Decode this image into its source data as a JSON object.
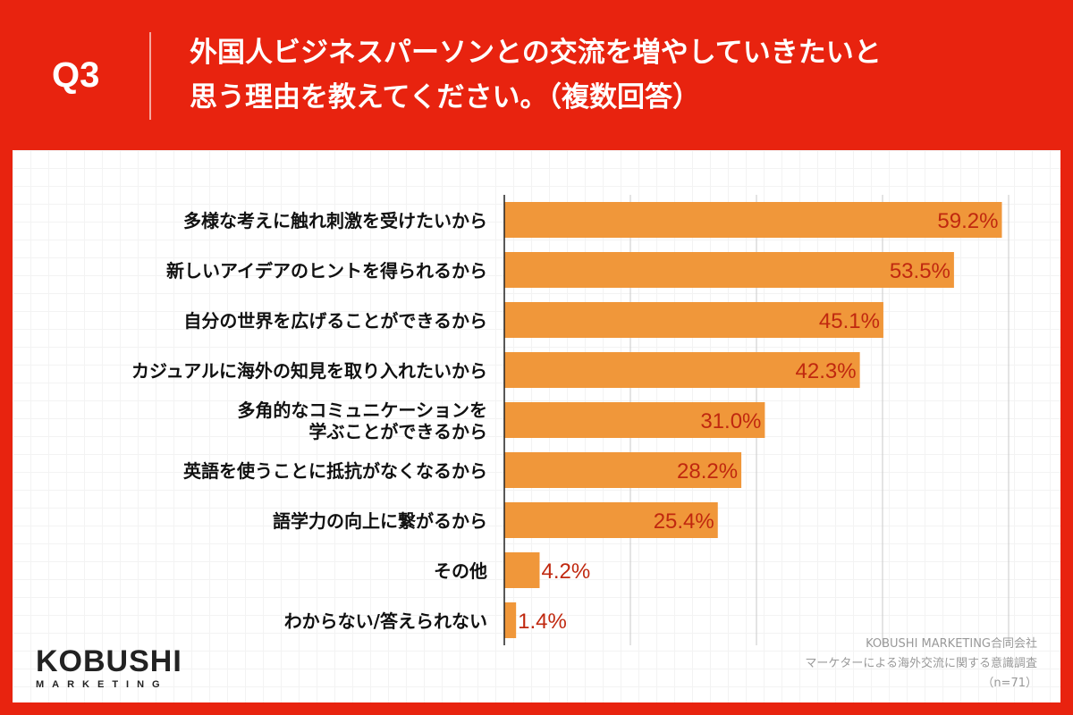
{
  "header": {
    "q_label": "Q3",
    "title_line1": "外国人ビジネスパーソンとの交流を増やしていきたいと",
    "title_line2": "思う理由を教えてください。（複数回答）"
  },
  "chart_data": {
    "type": "bar",
    "orientation": "horizontal",
    "categories": [
      "多様な考えに触れ刺激を受けたいから",
      "新しいアイデアのヒントを得られるから",
      "自分の世界を広げることができるから",
      "カジュアルに海外の知見を取り入れたいから",
      "多角的なコミュニケーションを\n学ぶことができるから",
      "英語を使うことに抵抗がなくなるから",
      "語学力の向上に繋がるから",
      "その他",
      "わからない/答えられない"
    ],
    "values": [
      59.2,
      53.5,
      45.1,
      42.3,
      31.0,
      28.2,
      25.4,
      4.2,
      1.4
    ],
    "labels": [
      "59.2%",
      "53.5%",
      "45.1%",
      "42.3%",
      "31.0%",
      "28.2%",
      "25.4%",
      "4.2%",
      "1.4%"
    ],
    "xlim": [
      0,
      60
    ],
    "grid_step": 15,
    "grid": true,
    "bar_color": "#f0973a",
    "label_color": "#c0280f"
  },
  "logo": {
    "main": "KOBUSHI",
    "sub": "MARKETING"
  },
  "credit": {
    "company": "KOBUSHI MARKETING合同会社",
    "survey": "マーケターによる海外交流に関する意識調査",
    "n": "（n=71）"
  }
}
